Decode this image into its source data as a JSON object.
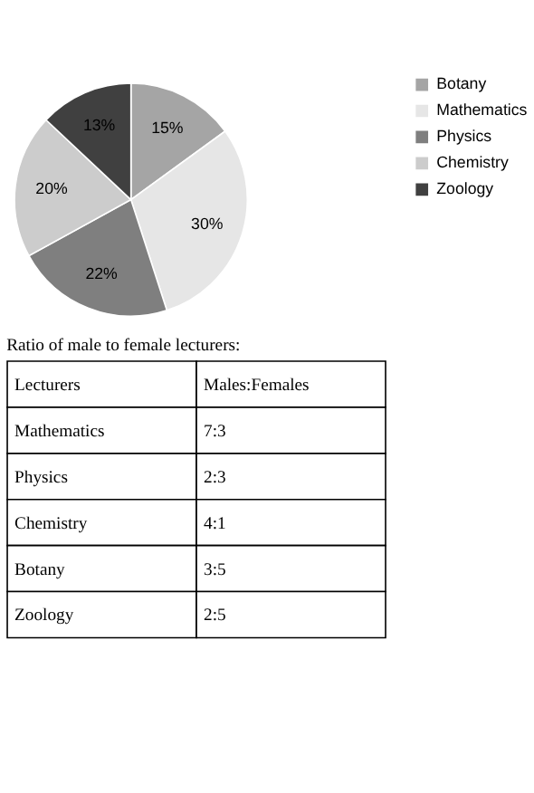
{
  "chart_data": {
    "type": "pie",
    "categories": [
      "Botany",
      "Mathematics",
      "Physics",
      "Chemistry",
      "Zoology"
    ],
    "values": [
      15,
      30,
      22,
      20,
      13
    ],
    "colors": [
      "#a5a5a5",
      "#e6e6e6",
      "#7f7f7f",
      "#cccccc",
      "#404040"
    ],
    "value_labels": [
      "15%",
      "30%",
      "22%",
      "20%",
      "13%"
    ],
    "legend": "right",
    "annotations": [
      "Ratio of male to female lecturers:",
      "Lecturers",
      "Males:Females",
      "Mathematics",
      "7:3",
      "Physics",
      "2:3",
      "Chemistry",
      "4:1",
      "Botany",
      "3:5",
      "Zoology",
      "2:5"
    ]
  }
}
